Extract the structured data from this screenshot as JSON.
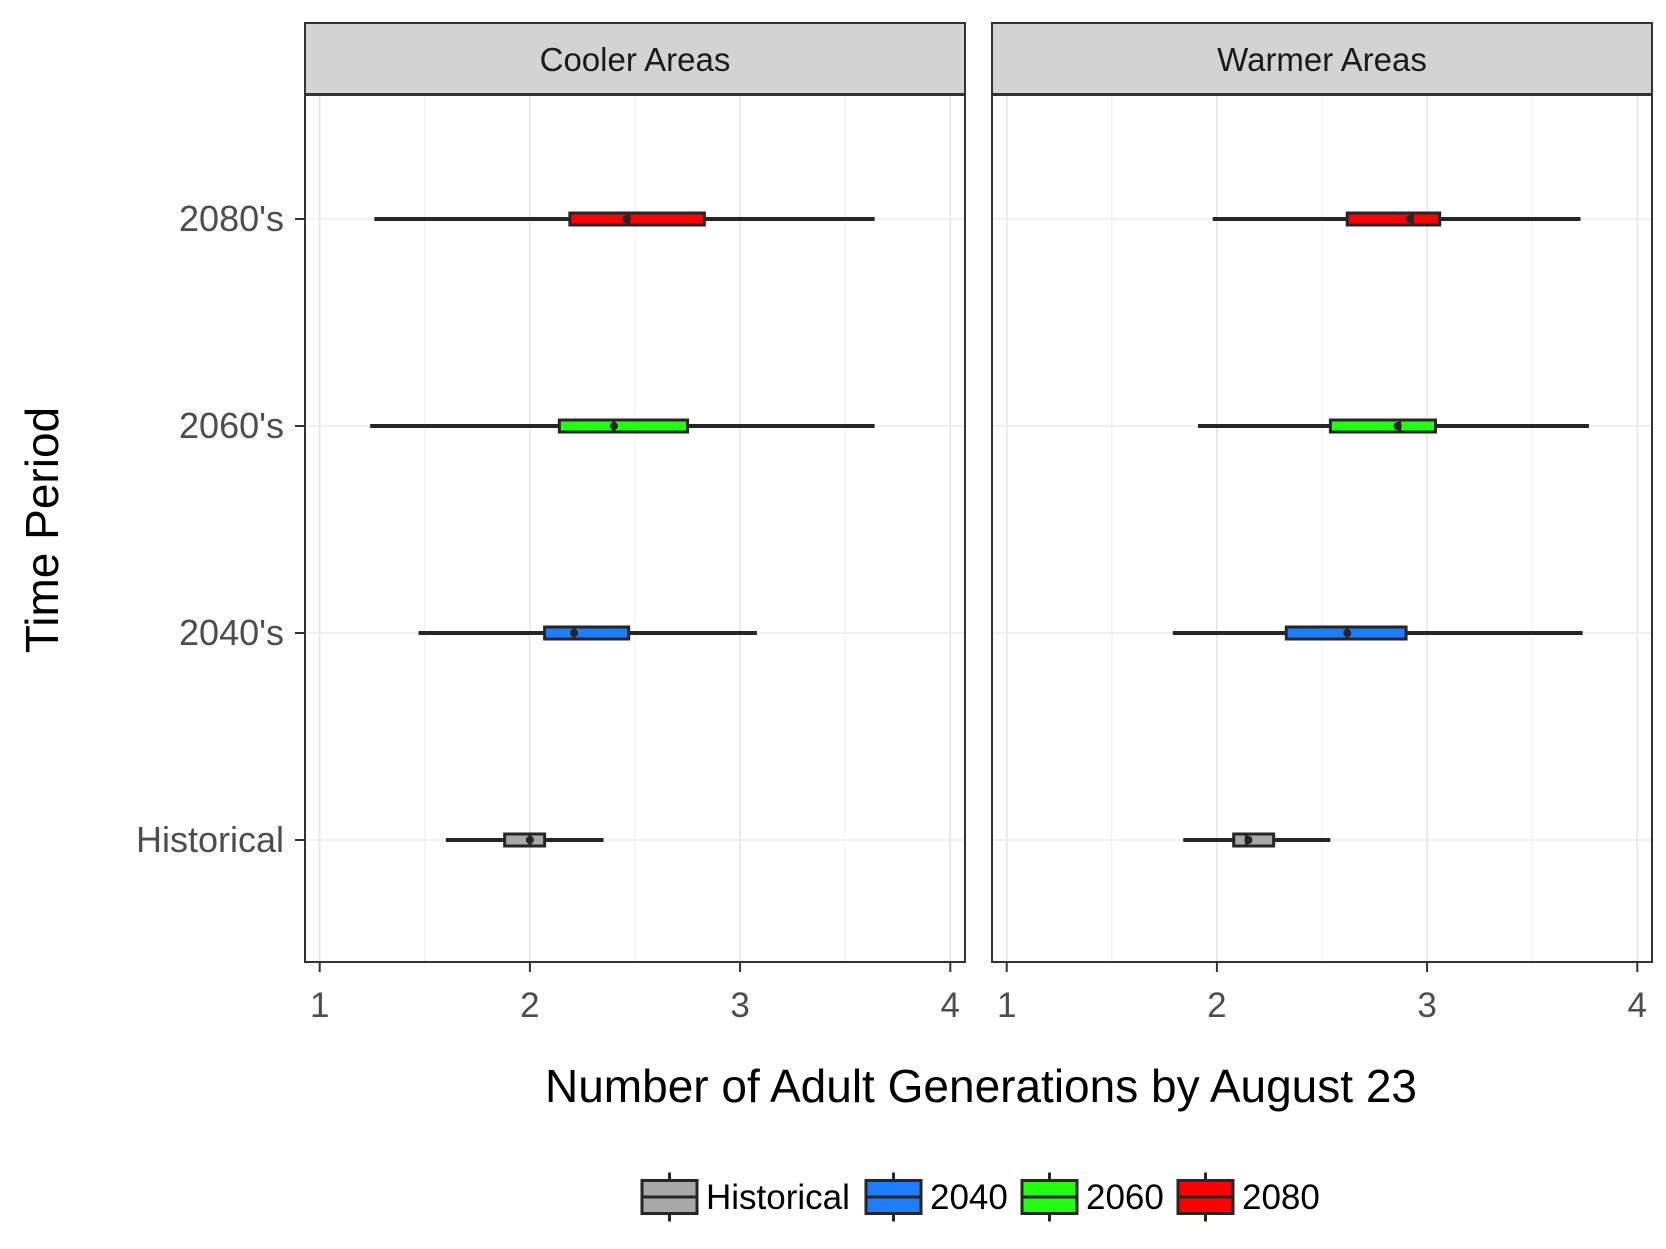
{
  "chart_data": {
    "type": "boxplot",
    "orientation": "horizontal",
    "facets": [
      {
        "name": "Cooler Areas",
        "boxes": [
          {
            "period": "2080's",
            "series": "2080",
            "whisker_low": 1.26,
            "q1": 2.19,
            "median": 2.47,
            "q3": 2.83,
            "whisker_high": 3.64,
            "mean": 2.46
          },
          {
            "period": "2060's",
            "series": "2060",
            "whisker_low": 1.24,
            "q1": 2.14,
            "median": 2.4,
            "q3": 2.75,
            "whisker_high": 3.64,
            "mean": 2.4
          },
          {
            "period": "2040's",
            "series": "2040",
            "whisker_low": 1.47,
            "q1": 2.07,
            "median": 2.21,
            "q3": 2.47,
            "whisker_high": 3.08,
            "mean": 2.21
          },
          {
            "period": "Historical",
            "series": "Historical",
            "whisker_low": 1.6,
            "q1": 1.88,
            "median": 2.0,
            "q3": 2.07,
            "whisker_high": 2.35,
            "mean": 2.0
          }
        ]
      },
      {
        "name": "Warmer Areas",
        "boxes": [
          {
            "period": "2080's",
            "series": "2080",
            "whisker_low": 1.98,
            "q1": 2.62,
            "median": 2.93,
            "q3": 3.06,
            "whisker_high": 3.73,
            "mean": 2.92
          },
          {
            "period": "2060's",
            "series": "2060",
            "whisker_low": 1.91,
            "q1": 2.54,
            "median": 2.87,
            "q3": 3.04,
            "whisker_high": 3.77,
            "mean": 2.86
          },
          {
            "period": "2040's",
            "series": "2040",
            "whisker_low": 1.79,
            "q1": 2.33,
            "median": 2.62,
            "q3": 2.9,
            "whisker_high": 3.74,
            "mean": 2.62
          },
          {
            "period": "Historical",
            "series": "Historical",
            "whisker_low": 1.84,
            "q1": 2.08,
            "median": 2.14,
            "q3": 2.27,
            "whisker_high": 2.54,
            "mean": 2.15
          }
        ]
      }
    ],
    "categories": [
      "2080's",
      "2060's",
      "2040's",
      "Historical"
    ],
    "xlabel": "Number of Adult Generations by August 23",
    "ylabel": "Time Period",
    "xlim": [
      0.93,
      4.07
    ],
    "xticks": [
      1,
      2,
      3,
      4
    ],
    "xtick_labels": [
      "1",
      "2",
      "3",
      "4"
    ],
    "grid": true,
    "legend": {
      "position": "bottom",
      "entries": [
        {
          "label": "Historical",
          "series": "Historical",
          "color": "#a9a9a9"
        },
        {
          "label": "2040",
          "series": "2040",
          "color": "#1f7dff"
        },
        {
          "label": "2060",
          "series": "2060",
          "color": "#22ff12"
        },
        {
          "label": "2080",
          "series": "2080",
          "color": "#ff0000"
        }
      ]
    },
    "colors": {
      "Historical": "#a9a9a9",
      "2040": "#1f7dff",
      "2060": "#22ff12",
      "2080": "#ff0000"
    }
  }
}
